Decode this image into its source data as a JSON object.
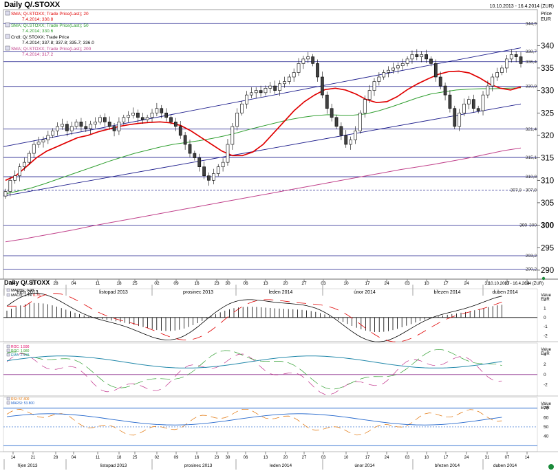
{
  "header": {
    "title": "Daily Q/.STOXX",
    "date_range": "10.10.2013 - 16.4.2014 (ZUR)",
    "price_unit": "Price\nEUR"
  },
  "legend": [
    {
      "label": "SMA; Q/.STOXX; Trade Price(Last); 20",
      "value": "7.4.2014; 330.8",
      "color": "#e00000"
    },
    {
      "label": "SMA; Q/.STOXX; Trade Price(Last); 50",
      "value": "7.4.2014; 330.6",
      "color": "#2f9e2f"
    },
    {
      "label": "Cndl; Q/.STOXX; Trade Price",
      "value": "7.4.2014; 337.8; 337.8; 335.7; 336.0",
      "color": "#000000"
    },
    {
      "label": "SMA; Q/.STOXX; Trade Price(Last); 200",
      "value": "7.4.2014; 317.2",
      "color": "#c0408a"
    }
  ],
  "price_axis_ticks": [
    "340",
    "335",
    "330",
    "325",
    "320",
    "315",
    "310",
    "305",
    "300",
    "295",
    "290"
  ],
  "level_labels": [
    "344,9",
    "338,7",
    "336,4",
    "330,9",
    "321,4",
    "315,1",
    "310,8",
    "307,8 - 307,8",
    "300",
    "293,2",
    "290,2"
  ],
  "bold_label": "300",
  "dates_top": [
    "14",
    "21",
    "28",
    "04",
    "11",
    "18",
    "25",
    "02",
    "09",
    "16",
    "23",
    "30",
    "06",
    "13",
    "20",
    "27",
    "03",
    "10",
    "17",
    "24",
    "03",
    "10",
    "17",
    "24",
    "31",
    "07",
    "14"
  ],
  "months": [
    "říjen 2013",
    "listopad 2013",
    "prosinec 2013",
    "leden 2014",
    "únor 2014",
    "březen 2014",
    "duben 2014"
  ],
  "sub_header": {
    "title": "Daily Q/.STOXX",
    "date_range": "10.10.2013 - 16.4.2014 (ZUR)"
  },
  "macd": {
    "legend": [
      {
        "label": "MACDF",
        "value": "0.98",
        "color": "#000000"
      },
      {
        "label": "MACD",
        "value": "1.74",
        "value2": "0.76",
        "color": "#e00000"
      }
    ],
    "axis_title": "Value\nEUR",
    "ticks": [
      "2",
      "1",
      "0",
      "-1",
      "-2"
    ]
  },
  "roc": {
    "legend": [
      {
        "label": "ROC",
        "value": "1.590",
        "color": "#e00060"
      },
      {
        "label": "ROC",
        "value": "1.980",
        "color": "#2f9e2f"
      },
      {
        "label": "EMA",
        "value": "2.418",
        "color": "#2288aa"
      }
    ],
    "axis_title": "Value\nEUR",
    "ticks": [
      "4",
      "2",
      "0",
      "-2"
    ]
  },
  "rsi": {
    "legend": [
      {
        "label": "RSI",
        "value": "57.400",
        "color": "#e07000"
      },
      {
        "label": "MARSI",
        "value": "53.800",
        "color": "#2266cc"
      }
    ],
    "axis_title": "Value\nEUR",
    "ticks": [
      "70",
      "60",
      "50",
      "40"
    ]
  },
  "colors": {
    "grid": "#1a1a8a",
    "candle_up": "#ffffff",
    "candle_down": "#404040",
    "sma20": "#e00000",
    "sma50": "#2f9e2f",
    "sma200": "#c0408a"
  },
  "chart_data": {
    "type": "line",
    "title": "Daily Q/.STOXX",
    "ylim": [
      288,
      348
    ],
    "x_range": [
      "2013-10-10",
      "2014-04-16"
    ],
    "close": [
      307.5,
      310,
      311,
      313,
      314,
      316,
      318,
      318.5,
      319,
      320,
      321,
      322,
      322.5,
      321,
      322,
      323,
      322,
      321.5,
      322.5,
      323,
      324,
      323,
      322,
      321,
      323,
      324,
      324.5,
      325,
      324,
      323.5,
      324,
      325,
      326,
      325,
      324,
      323,
      322,
      320,
      318,
      316,
      315,
      313,
      311,
      310,
      311.5,
      313,
      314,
      318,
      322,
      325,
      327,
      329,
      329.5,
      330,
      329.5,
      330.5,
      331,
      330,
      331.5,
      332,
      333,
      334,
      336,
      337,
      337.5,
      336,
      333,
      329,
      326,
      324,
      322,
      320,
      318,
      319,
      321,
      325,
      328,
      330,
      332,
      333,
      334,
      334.5,
      335,
      335.5,
      336,
      337,
      338,
      337.5,
      338,
      337,
      336,
      333,
      331,
      329,
      326,
      322,
      325,
      327,
      328,
      326,
      325.5,
      329,
      331,
      333,
      334,
      335,
      337,
      338,
      337.5,
      336
    ],
    "series": [
      {
        "name": "SMA 20",
        "values": [
          310,
          311,
          313,
          315,
          316.5,
          317.5,
          318.5,
          319.5,
          320,
          320.8,
          321.4,
          322,
          322.4,
          322.7,
          322.9,
          323,
          322.8,
          322.2,
          321,
          319.5,
          318,
          316.5,
          315.5,
          315.5,
          316.3,
          318,
          320.5,
          323,
          325.5,
          327.5,
          329,
          330.2,
          330.5,
          330.1,
          329.2,
          328,
          327.3,
          327.5,
          328.6,
          330.2,
          331.5,
          332.6,
          333.6,
          334.2,
          334.3,
          333.9,
          332.8,
          331.4,
          330.5,
          330.1,
          330.8
        ]
      },
      {
        "name": "SMA 50",
        "values": [
          307,
          307.6,
          308.3,
          309.2,
          310.2,
          311.2,
          312.2,
          313.2,
          314.2,
          315.1,
          316,
          316.7,
          317.4,
          318,
          318.4,
          318.8,
          319.3,
          319.9,
          320.6,
          321.4,
          322.1,
          322.8,
          323.5,
          324,
          324.4,
          324.6,
          324.5,
          324.5,
          324.8,
          325.5,
          326.4,
          327.4,
          328.4,
          329.2,
          329.7,
          330.1,
          330.3,
          330.4,
          330.4,
          330.5,
          330.6
        ]
      },
      {
        "name": "SMA 200",
        "values": [
          296.3,
          296.9,
          297.6,
          298.3,
          299,
          299.8,
          300.5,
          301.2,
          301.9,
          302.6,
          303.3,
          304,
          304.7,
          305.4,
          306.1,
          306.8,
          307.5,
          308.2,
          308.9,
          309.6,
          310.3,
          311,
          311.7,
          312.4,
          313,
          313.6,
          314.3,
          315,
          315.8,
          316.6,
          317.2
        ]
      }
    ],
    "horizontal_levels": [
      344.9,
      338.7,
      336.4,
      330.9,
      321.4,
      315.1,
      310.8,
      307.8,
      300,
      293.2,
      290.2
    ],
    "trend_channel": {
      "upper": [
        [
          0,
          317.5
        ],
        [
          1,
          339.5
        ]
      ],
      "lower": [
        [
          0,
          306.5
        ],
        [
          1,
          327
        ]
      ]
    }
  }
}
